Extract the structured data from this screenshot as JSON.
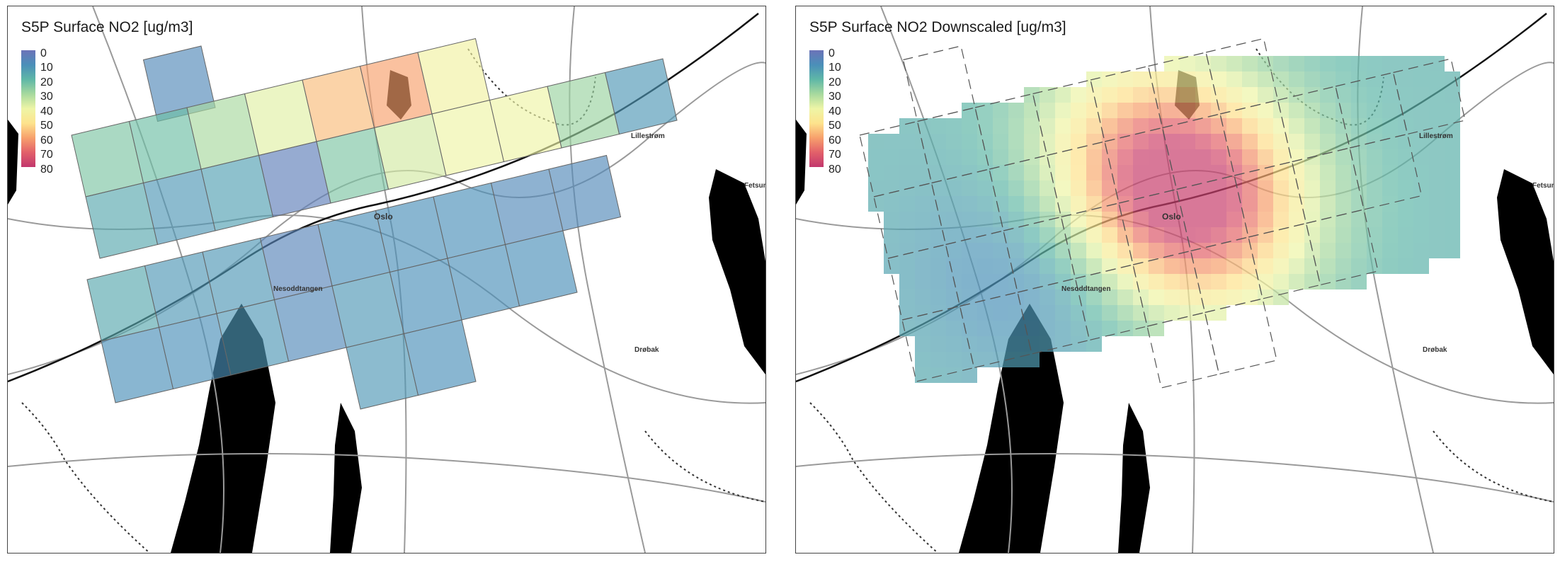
{
  "panels": {
    "left": {
      "title": "S5P Surface NO2 [ug/m3]"
    },
    "right": {
      "title": "S5P Surface NO2 Downscaled [ug/m3]"
    }
  },
  "legend": {
    "ticks": [
      "0",
      "10",
      "20",
      "30",
      "40",
      "50",
      "60",
      "70",
      "80"
    ],
    "range": [
      0,
      80
    ],
    "colormap": [
      "#6c73b8",
      "#4a8fb9",
      "#5fb7a7",
      "#a7d99e",
      "#eef5a6",
      "#fde38d",
      "#f7a06c",
      "#e2606a",
      "#c2376d"
    ]
  },
  "places": {
    "lillestrom": "Lillestrøm",
    "fetsund": "Fetsund",
    "oslo": "Oslo",
    "nesoddtangen": "Nesoddtangen",
    "drobak": "Drøbak"
  },
  "colors": {
    "water": "#000000",
    "roads": "#9a9a9a",
    "border": "#333333",
    "grid_outline": "#666666"
  }
}
